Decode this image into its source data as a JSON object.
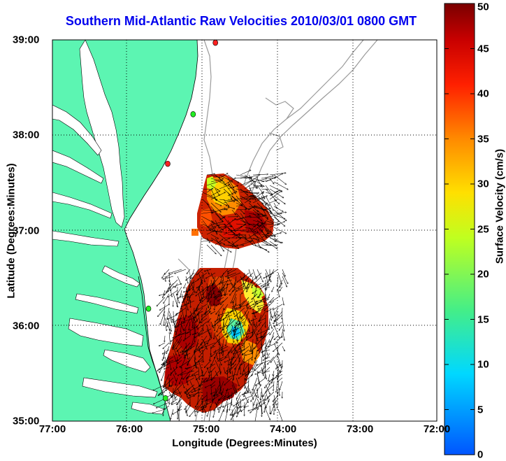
{
  "title": "Southern Mid-Atlantic Raw Velocities 2010/03/01 0800 GMT",
  "map": {
    "xlabel": "Longitude (Degrees:Minutes)",
    "ylabel": "Latitude (Degrees:Minutes)",
    "xticks": [
      {
        "value": -77,
        "label": "77:00"
      },
      {
        "value": -76,
        "label": "76:00"
      },
      {
        "value": -75,
        "label": "75:00"
      },
      {
        "value": -74,
        "label": "74:00"
      },
      {
        "value": -73,
        "label": "73:00"
      },
      {
        "value": -72,
        "label": "72:00"
      }
    ],
    "yticks": [
      {
        "value": 39,
        "label": "39:00"
      },
      {
        "value": 38,
        "label": "38:00"
      },
      {
        "value": 37,
        "label": "37:00"
      },
      {
        "value": 36,
        "label": "36:00"
      },
      {
        "value": 35,
        "label": "35:00"
      }
    ],
    "lon_range": [
      -77,
      -72
    ],
    "lat_range": [
      35,
      39
    ],
    "grid": "dotted",
    "land_color": "#5cf5b2",
    "stations": [
      {
        "lon": -74.88,
        "lat": 38.97,
        "color": "#ff2020"
      },
      {
        "lon": -75.17,
        "lat": 38.22,
        "color": "#22ee22"
      },
      {
        "lon": -75.5,
        "lat": 37.7,
        "color": "#ff2020"
      },
      {
        "lon": -75.75,
        "lat": 36.18,
        "color": "#22ee22"
      },
      {
        "lon": -75.53,
        "lat": 35.24,
        "color": "#22ee22"
      }
    ]
  },
  "colorbar": {
    "label": "Surface Velocity (cm/s)",
    "range": [
      0,
      50
    ],
    "ticks": [
      "0",
      "5",
      "10",
      "15",
      "20",
      "25",
      "30",
      "35",
      "40",
      "45",
      "50"
    ]
  },
  "chart_data": {
    "type": "heatmap",
    "title": "Southern Mid-Atlantic Raw Velocities 2010/03/01 0800 GMT",
    "xlabel": "Longitude (Degrees:Minutes)",
    "ylabel": "Latitude (Degrees:Minutes)",
    "xlim": [
      -77,
      -72
    ],
    "ylim": [
      35,
      39
    ],
    "units": "cm/s",
    "colorbar_range": [
      0,
      50
    ],
    "regions": [
      {
        "lon": -74.85,
        "lat": 37.25,
        "speed": 38
      },
      {
        "lon": -74.6,
        "lat": 37.1,
        "speed": 45
      },
      {
        "lon": -74.4,
        "lat": 37.05,
        "speed": 48
      },
      {
        "lon": -74.95,
        "lat": 36.95,
        "speed": 42
      },
      {
        "lon": -74.9,
        "lat": 36.35,
        "speed": 47
      },
      {
        "lon": -74.55,
        "lat": 36.3,
        "speed": 44
      },
      {
        "lon": -74.3,
        "lat": 36.05,
        "speed": 28
      },
      {
        "lon": -74.55,
        "lat": 35.85,
        "speed": 12
      },
      {
        "lon": -74.8,
        "lat": 35.7,
        "speed": 40
      },
      {
        "lon": -75.2,
        "lat": 35.75,
        "speed": 46
      },
      {
        "lon": -74.9,
        "lat": 35.3,
        "speed": 43
      },
      {
        "lon": -74.5,
        "lat": 35.45,
        "speed": 35
      }
    ]
  }
}
